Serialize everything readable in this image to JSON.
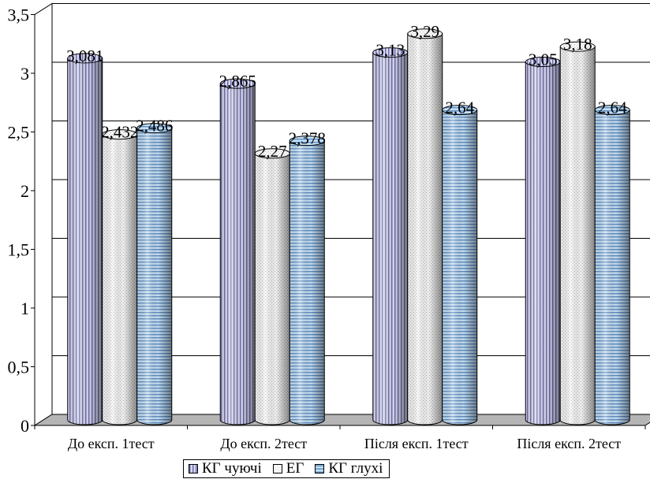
{
  "chart_data": {
    "type": "bar",
    "title": "",
    "xlabel": "",
    "ylabel": "",
    "categories": [
      "До експ. 1тест",
      "До експ. 2тест",
      "Після експ. 1тест",
      "Після експ. 2тест"
    ],
    "series": [
      {
        "name": "КГ чуючі",
        "values": [
          3.081,
          2.865,
          3.13,
          3.05
        ],
        "labels": [
          "3,081",
          "2,865",
          "3,13",
          "3,05"
        ],
        "color": "#c8c8e8"
      },
      {
        "name": "ЕГ",
        "values": [
          2.432,
          2.27,
          3.29,
          3.18
        ],
        "labels": [
          "2,432",
          "2,27",
          "3,29",
          "3,18"
        ],
        "color": "#ececec"
      },
      {
        "name": "КГ глухі",
        "values": [
          2.486,
          2.378,
          2.64,
          2.64
        ],
        "labels": [
          "2,486",
          "2,378",
          "2,64",
          "2,64"
        ],
        "color": "#9fc3e6"
      }
    ],
    "ylim": [
      0,
      3.5
    ],
    "yticks": [
      0,
      0.5,
      1,
      1.5,
      2,
      2.5,
      3,
      3.5
    ],
    "ytick_labels": [
      "0",
      "0,5",
      "1",
      "1,5",
      "2",
      "2,5",
      "3",
      "3,5"
    ],
    "grid": true,
    "legend_position": "bottom",
    "style": "3d-cylinder"
  }
}
